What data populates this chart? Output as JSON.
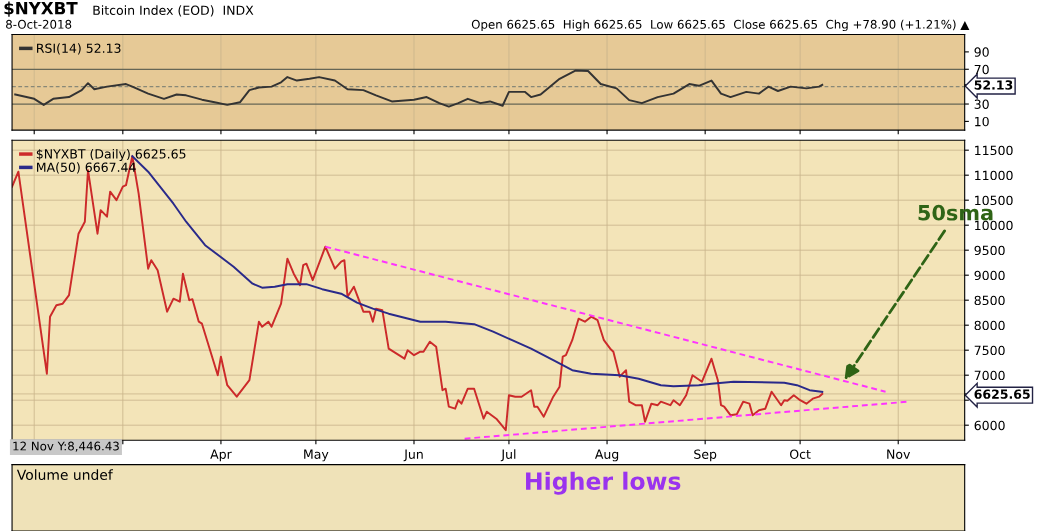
{
  "chart_data": [
    {
      "type": "line",
      "title": "$NYXBT",
      "subtitle": "Bitcoin Index (EOD)  INDX",
      "annotations": [
        "8-Oct-2018",
        "Open 6625.65  High 6625.65  Low 6625.65  Close 6625.65  Chg +78.90 (+1.21%) ▲"
      ],
      "xlim": [
        "2018-01-25",
        "2018-11-22"
      ],
      "xticks": [
        {
          "value": "2018-02-01",
          "label": null
        },
        {
          "value": "2018-03-01",
          "label": null
        },
        {
          "value": "2018-04-01",
          "label": null
        },
        {
          "value": "2018-05-01",
          "label": null
        },
        {
          "value": "2018-06-01",
          "label": null
        },
        {
          "value": "2018-07-01",
          "label": null
        },
        {
          "value": "2018-08-01",
          "label": null
        },
        {
          "value": "2018-09-01",
          "label": null
        },
        {
          "value": "2018-10-01",
          "label": null
        },
        {
          "value": "2018-11-01",
          "label": null
        }
      ],
      "ylim": [
        0,
        110
      ],
      "yticks": [
        10,
        30,
        {
          "value": 52.13,
          "label": "52.13"
        },
        70,
        90
      ],
      "tick_labels": "y",
      "grid": "x",
      "legend": "top left",
      "ref_lines": [
        {
          "axis": "y",
          "value": 70,
          "color": "#666655",
          "line_style": "solid"
        },
        {
          "axis": "y",
          "value": 30,
          "color": "#666655",
          "line_style": "solid"
        },
        {
          "axis": "y",
          "value": 50,
          "color": "#888877",
          "line_style": "dashed"
        }
      ],
      "series": [
        {
          "name": "RSI(14) 52.13",
          "color": "#333333",
          "x": [
            "2018-01-26",
            "2018-02-01",
            "2018-02-04",
            "2018-02-07",
            "2018-02-12",
            "2018-02-16",
            "2018-02-18",
            "2018-02-20",
            "2018-02-24",
            "2018-03-02",
            "2018-03-04",
            "2018-03-09",
            "2018-03-14",
            "2018-03-18",
            "2018-03-21",
            "2018-03-26",
            "2018-03-30",
            "2018-04-03",
            "2018-04-07",
            "2018-04-10",
            "2018-04-13",
            "2018-04-17",
            "2018-04-20",
            "2018-04-22",
            "2018-04-25",
            "2018-04-29",
            "2018-05-02",
            "2018-05-07",
            "2018-05-11",
            "2018-05-16",
            "2018-05-20",
            "2018-05-25",
            "2018-06-01",
            "2018-06-05",
            "2018-06-09",
            "2018-06-12",
            "2018-06-15",
            "2018-06-18",
            "2018-06-22",
            "2018-06-25",
            "2018-06-29",
            "2018-07-01",
            "2018-07-06",
            "2018-07-08",
            "2018-07-11",
            "2018-07-17",
            "2018-07-22",
            "2018-07-26",
            "2018-07-30",
            "2018-08-04",
            "2018-08-08",
            "2018-08-12",
            "2018-08-17",
            "2018-08-22",
            "2018-08-27",
            "2018-08-30",
            "2018-09-03",
            "2018-09-06",
            "2018-09-09",
            "2018-09-14",
            "2018-09-18",
            "2018-09-21",
            "2018-09-24",
            "2018-09-28",
            "2018-10-03",
            "2018-10-07",
            "2018-10-08"
          ],
          "values": [
            41,
            36,
            29,
            36,
            38,
            46,
            54,
            47,
            50,
            53,
            50,
            42,
            36,
            41,
            40,
            35,
            32,
            29,
            32,
            46,
            49,
            50,
            55,
            61,
            57,
            59,
            61,
            57,
            47,
            46,
            40,
            33,
            35,
            38,
            31,
            27,
            31,
            36,
            31,
            33,
            28,
            44,
            44,
            38,
            41,
            59,
            68.5,
            68,
            53,
            48,
            34.5,
            31,
            38,
            42,
            53,
            51,
            57,
            42,
            38,
            44,
            42,
            50,
            45,
            50,
            48,
            50,
            52.13
          ]
        }
      ]
    },
    {
      "type": "line",
      "annotations": [
        "12 Nov Y:8,446.43",
        {
          "text": "50sma",
          "x": "2018-10-15",
          "y": 6900
        }
      ],
      "xlim": [
        "2018-01-25",
        "2018-11-22"
      ],
      "xticks": [
        {
          "value": "2018-02-01",
          "label": null
        },
        {
          "value": "2018-03-01",
          "label": null
        },
        {
          "value": "2018-04-01",
          "label": "Apr"
        },
        {
          "value": "2018-05-01",
          "label": "May"
        },
        {
          "value": "2018-06-01",
          "label": "Jun"
        },
        {
          "value": "2018-07-01",
          "label": "Jul"
        },
        {
          "value": "2018-08-01",
          "label": "Aug"
        },
        {
          "value": "2018-09-01",
          "label": "Sep"
        },
        {
          "value": "2018-10-01",
          "label": "Oct"
        },
        {
          "value": "2018-11-01",
          "label": "Nov"
        }
      ],
      "ylim": [
        5700,
        11700
      ],
      "yticks": [
        6000,
        {
          "value": 6500,
          "label": null
        },
        {
          "value": 6625.65,
          "label": "6625.65"
        },
        7000,
        7500,
        8000,
        8500,
        9000,
        9500,
        10000,
        10500,
        11000,
        11500
      ],
      "grid": true,
      "legend": "top left",
      "series": [
        {
          "name": "$NYXBT (Daily) 6625.65",
          "color": "#cc2a2a",
          "x": [
            "2018-01-25",
            "2018-01-27",
            "2018-02-05",
            "2018-02-06",
            "2018-02-08",
            "2018-02-10",
            "2018-02-12",
            "2018-02-15",
            "2018-02-17",
            "2018-02-18",
            "2018-02-21",
            "2018-02-22",
            "2018-02-24",
            "2018-02-25",
            "2018-02-27",
            "2018-03-01",
            "2018-03-02",
            "2018-03-04",
            "2018-03-06",
            "2018-03-09",
            "2018-03-10",
            "2018-03-12",
            "2018-03-15",
            "2018-03-17",
            "2018-03-19",
            "2018-03-20",
            "2018-03-22",
            "2018-03-23",
            "2018-03-25",
            "2018-03-26",
            "2018-03-31",
            "2018-04-01",
            "2018-04-03",
            "2018-04-06",
            "2018-04-10",
            "2018-04-13",
            "2018-04-14",
            "2018-04-16",
            "2018-04-17",
            "2018-04-20",
            "2018-04-22",
            "2018-04-24",
            "2018-04-26",
            "2018-04-27",
            "2018-04-28",
            "2018-04-30",
            "2018-05-04",
            "2018-05-07",
            "2018-05-09",
            "2018-05-10",
            "2018-05-11",
            "2018-05-13",
            "2018-05-16",
            "2018-05-18",
            "2018-05-19",
            "2018-05-20",
            "2018-05-22",
            "2018-05-24",
            "2018-05-29",
            "2018-05-30",
            "2018-06-01",
            "2018-06-03",
            "2018-06-04",
            "2018-06-06",
            "2018-06-08",
            "2018-06-10",
            "2018-06-11",
            "2018-06-12",
            "2018-06-14",
            "2018-06-15",
            "2018-06-16",
            "2018-06-18",
            "2018-06-20",
            "2018-06-23",
            "2018-06-24",
            "2018-06-27",
            "2018-06-30",
            "2018-07-01",
            "2018-07-03",
            "2018-07-05",
            "2018-07-08",
            "2018-07-09",
            "2018-07-10",
            "2018-07-12",
            "2018-07-15",
            "2018-07-17",
            "2018-07-18",
            "2018-07-19",
            "2018-07-21",
            "2018-07-23",
            "2018-07-25",
            "2018-07-27",
            "2018-07-29",
            "2018-07-31",
            "2018-08-02",
            "2018-08-03",
            "2018-08-05",
            "2018-08-07",
            "2018-08-08",
            "2018-08-10",
            "2018-08-12",
            "2018-08-13",
            "2018-08-15",
            "2018-08-17",
            "2018-08-18",
            "2018-08-21",
            "2018-08-22",
            "2018-08-24",
            "2018-08-26",
            "2018-08-28",
            "2018-08-31",
            "2018-09-03",
            "2018-09-05",
            "2018-09-06",
            "2018-09-07",
            "2018-09-09",
            "2018-09-11",
            "2018-09-13",
            "2018-09-15",
            "2018-09-16",
            "2018-09-18",
            "2018-09-20",
            "2018-09-22",
            "2018-09-25",
            "2018-09-26",
            "2018-09-27",
            "2018-09-29",
            "2018-10-01",
            "2018-10-03",
            "2018-10-05",
            "2018-10-07",
            "2018-10-08"
          ],
          "values": [
            10770,
            11070,
            7030,
            8170,
            8400,
            8430,
            8600,
            9830,
            10070,
            11100,
            9830,
            10300,
            10170,
            10670,
            10500,
            10770,
            10800,
            11380,
            10630,
            9130,
            9300,
            9100,
            8270,
            8530,
            8470,
            9030,
            8500,
            8520,
            8070,
            8030,
            7000,
            7370,
            6800,
            6570,
            6900,
            8070,
            7970,
            8070,
            7970,
            8430,
            9330,
            9030,
            8800,
            9200,
            9230,
            8900,
            9570,
            9130,
            9270,
            9300,
            8570,
            8770,
            8270,
            8270,
            8070,
            8330,
            8300,
            7530,
            7330,
            7500,
            7400,
            7470,
            7470,
            7670,
            7570,
            6700,
            6730,
            6370,
            6330,
            6500,
            6430,
            6730,
            6730,
            6130,
            6270,
            6130,
            5900,
            6600,
            6570,
            6570,
            6700,
            6370,
            6370,
            6170,
            6570,
            6770,
            7370,
            7400,
            7700,
            8130,
            8070,
            8170,
            8100,
            7700,
            7530,
            7470,
            6970,
            7100,
            6470,
            6400,
            6400,
            6070,
            6430,
            6400,
            6470,
            6400,
            6500,
            6400,
            6600,
            7000,
            6870,
            7330,
            6900,
            6400,
            6370,
            6200,
            6220,
            6470,
            6430,
            6200,
            6300,
            6330,
            6670,
            6400,
            6500,
            6490,
            6600,
            6500,
            6430,
            6530,
            6570,
            6625.65
          ]
        },
        {
          "name": "MA(50) 6667.44",
          "color": "#2a2a8a",
          "x": [
            "2018-03-04",
            "2018-03-09",
            "2018-03-17",
            "2018-03-21",
            "2018-03-27",
            "2018-04-05",
            "2018-04-11",
            "2018-04-14",
            "2018-04-18",
            "2018-04-22",
            "2018-04-28",
            "2018-05-03",
            "2018-05-09",
            "2018-05-14",
            "2018-05-19",
            "2018-05-24",
            "2018-06-03",
            "2018-06-11",
            "2018-06-20",
            "2018-06-26",
            "2018-07-02",
            "2018-07-08",
            "2018-07-15",
            "2018-07-21",
            "2018-07-27",
            "2018-08-05",
            "2018-08-11",
            "2018-08-18",
            "2018-08-22",
            "2018-08-30",
            "2018-09-03",
            "2018-09-10",
            "2018-09-26",
            "2018-09-30",
            "2018-10-04",
            "2018-10-08"
          ],
          "values": [
            11380,
            11070,
            10430,
            10070,
            9600,
            9170,
            8830,
            8750,
            8770,
            8820,
            8820,
            8720,
            8630,
            8450,
            8330,
            8230,
            8070,
            8070,
            8020,
            7870,
            7700,
            7530,
            7300,
            7100,
            7030,
            7000,
            6930,
            6800,
            6780,
            6800,
            6830,
            6870,
            6850,
            6800,
            6700,
            6667.44
          ]
        },
        {
          "type": "line",
          "color": "#ff33ff",
          "line_style": "dashed",
          "x": [
            "2018-05-04",
            "2018-10-28"
          ],
          "values": [
            9570,
            6670
          ]
        },
        {
          "type": "line",
          "color": "#ff33ff",
          "line_style": "dashed",
          "x": [
            "2018-06-17",
            "2018-11-04"
          ],
          "values": [
            5730,
            6470
          ]
        }
      ]
    },
    {
      "type": "other",
      "title": "Volume undef",
      "annotations": [
        "Higher lows"
      ]
    }
  ]
}
